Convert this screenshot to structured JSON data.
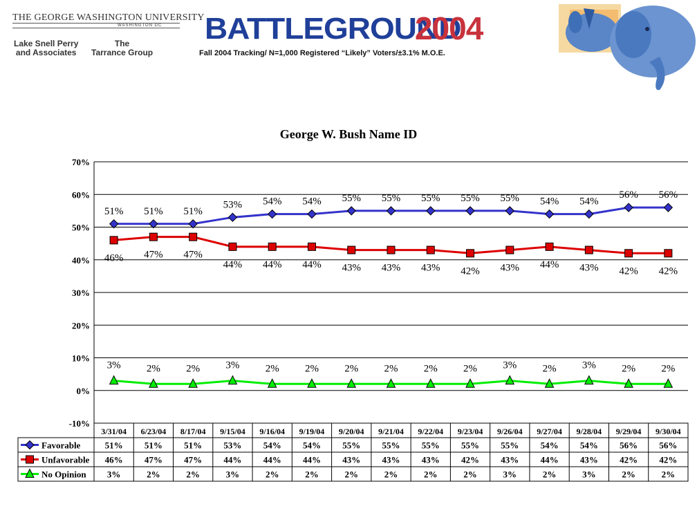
{
  "header": {
    "university": "THE GEORGE WASHINGTON UNIVERSITY",
    "university_sub": "WASHINGTON DC",
    "firm1_line1": "Lake Snell Perry",
    "firm1_line2": "and Associates",
    "firm2_line1": "The",
    "firm2_line2": "Tarrance Group",
    "battleground": "BATTLEGROUND",
    "year": "2004",
    "subtitle": "Fall 2004 Tracking/ N=1,000 Registered “Likely” Voters/±3.1% M.O.E."
  },
  "mascot_icon": "donkey-elephant-icon",
  "colors": {
    "favorable": "#3333cc",
    "unfavorable": "#dd0000",
    "no_opinion": "#00ee00",
    "title_blue": "#1f3f99",
    "title_red": "#c8323c"
  },
  "chart_data": {
    "type": "line",
    "title": "George W. Bush Name ID",
    "categories": [
      "3/31/04",
      "6/23/04",
      "8/17/04",
      "9/15/04",
      "9/16/04",
      "9/19/04",
      "9/20/04",
      "9/21/04",
      "9/22/04",
      "9/23/04",
      "9/26/04",
      "9/27/04",
      "9/28/04",
      "9/29/04",
      "9/30/04"
    ],
    "y_ticks": [
      "70%",
      "60%",
      "50%",
      "40%",
      "30%",
      "20%",
      "10%",
      "0%",
      "-10%"
    ],
    "ylim": [
      -10,
      70
    ],
    "grid": true,
    "legend_placement": "data-table-below",
    "series": [
      {
        "name": "Favorable",
        "marker": "diamond",
        "values": [
          51,
          51,
          51,
          53,
          54,
          54,
          55,
          55,
          55,
          55,
          55,
          54,
          54,
          56,
          56
        ],
        "labels": [
          "51%",
          "51%",
          "51%",
          "53%",
          "54%",
          "54%",
          "55%",
          "55%",
          "55%",
          "55%",
          "55%",
          "54%",
          "54%",
          "56%",
          "56%"
        ]
      },
      {
        "name": "Unfavorable",
        "marker": "square",
        "values": [
          46,
          47,
          47,
          44,
          44,
          44,
          43,
          43,
          43,
          42,
          43,
          44,
          43,
          42,
          42
        ],
        "labels": [
          "46%",
          "47%",
          "47%",
          "44%",
          "44%",
          "44%",
          "43%",
          "43%",
          "43%",
          "42%",
          "43%",
          "44%",
          "43%",
          "42%",
          "42%"
        ]
      },
      {
        "name": "No Opinion",
        "marker": "triangle",
        "values": [
          3,
          2,
          2,
          3,
          2,
          2,
          2,
          2,
          2,
          2,
          3,
          2,
          3,
          2,
          2
        ],
        "labels": [
          "3%",
          "2%",
          "2%",
          "3%",
          "2%",
          "2%",
          "2%",
          "2%",
          "2%",
          "2%",
          "3%",
          "2%",
          "3%",
          "2%",
          "2%"
        ]
      }
    ]
  }
}
